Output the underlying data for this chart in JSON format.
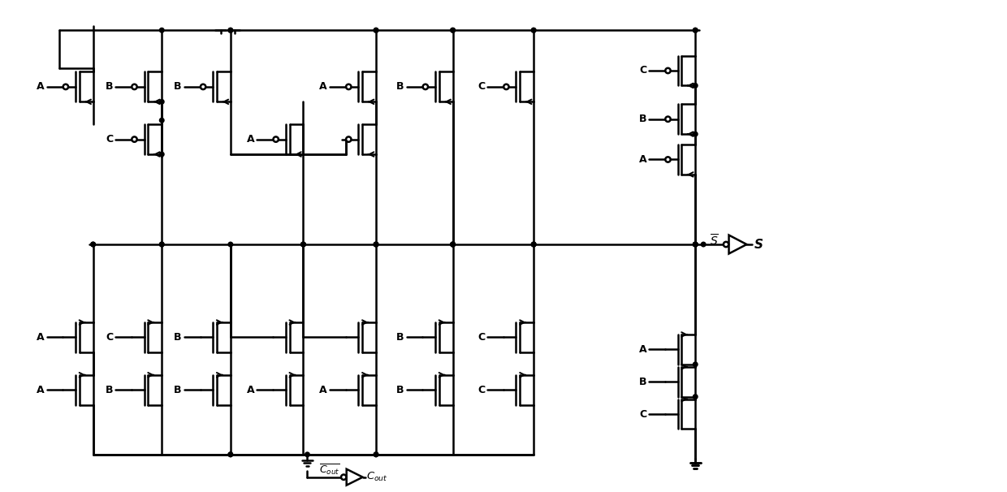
{
  "fig_w": 12.4,
  "fig_h": 6.06,
  "bg": "#ffffff",
  "lw": 1.8,
  "lw2": 1.4,
  "dot_r": 0.28,
  "bubble_r": 0.32,
  "TH": 1.85,
  "GP": 0.48,
  "SW": 1.7,
  "xlim": [
    0,
    124
  ],
  "ylim": [
    0,
    60.6
  ]
}
